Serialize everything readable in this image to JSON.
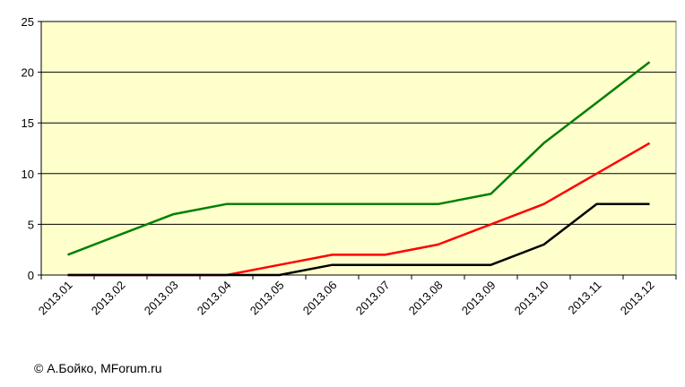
{
  "credit": "© А.Бойко, MForum.ru",
  "chart_data": {
    "type": "line",
    "title": "",
    "xlabel": "",
    "ylabel": "",
    "categories": [
      "2013.01",
      "2013.02",
      "2013.03",
      "2013.04",
      "2013.05",
      "2013.06",
      "2013.07",
      "2013.08",
      "2013.09",
      "2013.10",
      "2013.11",
      "2013.12"
    ],
    "ylim": [
      0,
      25
    ],
    "yticks": [
      0,
      5,
      10,
      15,
      20,
      25
    ],
    "grid": true,
    "plot_background": "#ffffcc",
    "series": [
      {
        "color": "#008000",
        "values": [
          2,
          4,
          6,
          7,
          7,
          7,
          7,
          7,
          8,
          13,
          17,
          21
        ]
      },
      {
        "color": "#ff0000",
        "values": [
          0,
          0,
          0,
          0,
          1,
          2,
          2,
          3,
          5,
          7,
          10,
          13
        ]
      },
      {
        "color": "#000000",
        "values": [
          0,
          0,
          0,
          0,
          0,
          1,
          1,
          1,
          1,
          3,
          7,
          7
        ]
      }
    ]
  }
}
